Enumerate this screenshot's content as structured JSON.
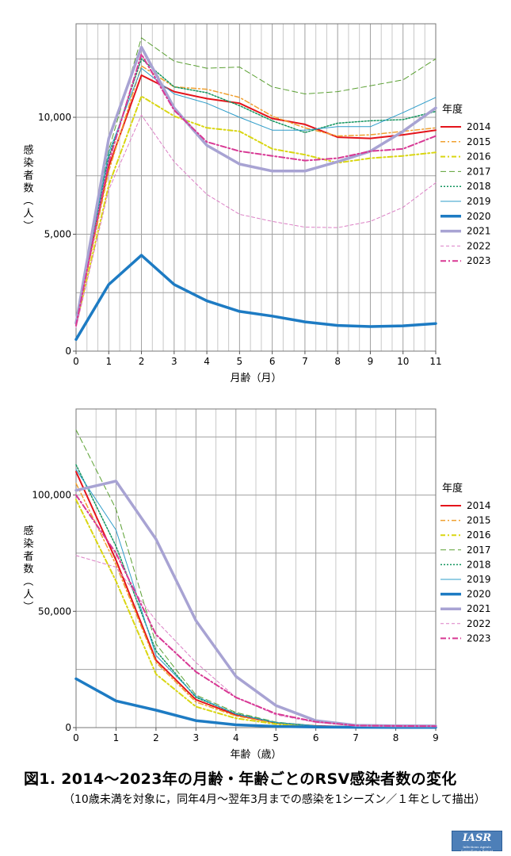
{
  "chart_data": [
    {
      "type": "line",
      "title": "",
      "xlabel": "月齢（月）",
      "ylabel": "感染者数（人）",
      "x": [
        0,
        1,
        2,
        3,
        4,
        5,
        6,
        7,
        8,
        9,
        10,
        11
      ],
      "xticks": [
        "0",
        "1",
        "2",
        "3",
        "4",
        "5",
        "6",
        "7",
        "8",
        "9",
        "10",
        "11"
      ],
      "yticks": [
        {
          "value": 0,
          "label": "0"
        },
        {
          "value": 5000,
          "label": "5,000"
        },
        {
          "value": 10000,
          "label": "10,000"
        }
      ],
      "ylim": [
        0,
        14000
      ],
      "legend_title": "年度",
      "series": [
        {
          "name": "2014",
          "values": [
            1300,
            7900,
            11800,
            11100,
            10800,
            10600,
            9950,
            9700,
            9150,
            9100,
            9250,
            9450
          ]
        },
        {
          "name": "2015",
          "values": [
            1200,
            7700,
            12200,
            11300,
            11200,
            10850,
            10050,
            9550,
            9200,
            9250,
            9400,
            9550
          ]
        },
        {
          "name": "2016",
          "values": [
            1100,
            7100,
            10900,
            10050,
            9550,
            9400,
            8650,
            8400,
            8050,
            8250,
            8350,
            8500
          ]
        },
        {
          "name": "2017",
          "values": [
            1400,
            8600,
            13400,
            12400,
            12100,
            12150,
            11300,
            11000,
            11100,
            11350,
            11600,
            12500
          ]
        },
        {
          "name": "2018",
          "values": [
            1300,
            8300,
            12500,
            11300,
            11050,
            10500,
            9850,
            9350,
            9750,
            9850,
            9900,
            10250
          ]
        },
        {
          "name": "2019",
          "values": [
            1300,
            8500,
            12100,
            11000,
            10600,
            10000,
            9450,
            9450,
            9600,
            9600,
            10200,
            10850
          ]
        },
        {
          "name": "2020",
          "values": [
            500,
            2850,
            4100,
            2850,
            2150,
            1700,
            1500,
            1250,
            1100,
            1050,
            1080,
            1180
          ]
        },
        {
          "name": "2021",
          "values": [
            1200,
            9100,
            13000,
            10400,
            8800,
            8000,
            7700,
            7700,
            8100,
            8550,
            9400,
            10400
          ]
        },
        {
          "name": "2022",
          "values": [
            1000,
            6900,
            10100,
            8100,
            6700,
            5850,
            5550,
            5300,
            5280,
            5550,
            6150,
            7200
          ]
        },
        {
          "name": "2023",
          "values": [
            1100,
            8100,
            12700,
            10300,
            8950,
            8550,
            8350,
            8150,
            8250,
            8550,
            8650,
            9200
          ]
        }
      ]
    },
    {
      "type": "line",
      "title": "",
      "xlabel": "年齢（歳）",
      "ylabel": "感染者数（人）",
      "x": [
        0,
        1,
        2,
        3,
        4,
        5,
        6,
        7,
        8,
        9
      ],
      "xticks": [
        "0",
        "1",
        "2",
        "3",
        "4",
        "5",
        "6",
        "7",
        "8",
        "9"
      ],
      "yticks": [
        {
          "value": 0,
          "label": "0"
        },
        {
          "value": 50000,
          "label": "50,000"
        },
        {
          "value": 100000,
          "label": "100,000"
        }
      ],
      "ylim": [
        0,
        137000
      ],
      "legend_title": "年度",
      "series": [
        {
          "name": "2014",
          "values": [
            110000,
            72000,
            29000,
            12000,
            5500,
            2000,
            700,
            300,
            200,
            150
          ]
        },
        {
          "name": "2015",
          "values": [
            105000,
            70000,
            28000,
            11000,
            5000,
            1800,
            600,
            300,
            200,
            150
          ]
        },
        {
          "name": "2016",
          "values": [
            98000,
            63000,
            23000,
            9000,
            4000,
            1500,
            500,
            250,
            150,
            100
          ]
        },
        {
          "name": "2017",
          "values": [
            128000,
            94000,
            36000,
            14000,
            6500,
            2400,
            800,
            350,
            250,
            200
          ]
        },
        {
          "name": "2018",
          "values": [
            113000,
            78000,
            33000,
            13000,
            6000,
            2100,
            700,
            300,
            200,
            150
          ]
        },
        {
          "name": "2019",
          "values": [
            111000,
            85000,
            31000,
            13500,
            5800,
            2200,
            700,
            300,
            200,
            150
          ]
        },
        {
          "name": "2020",
          "values": [
            21000,
            11500,
            7500,
            3000,
            1200,
            500,
            250,
            150,
            100,
            80
          ]
        },
        {
          "name": "2021",
          "values": [
            102000,
            106000,
            81000,
            46000,
            22000,
            9500,
            3000,
            1000,
            800,
            700
          ]
        },
        {
          "name": "2022",
          "values": [
            74000,
            69000,
            46000,
            28000,
            13000,
            5500,
            2200,
            900,
            700,
            600
          ]
        },
        {
          "name": "2023",
          "values": [
            100000,
            75000,
            40000,
            24000,
            13000,
            6000,
            2500,
            900,
            700,
            600
          ]
        }
      ]
    }
  ],
  "styles": {
    "2014": {
      "color": "#e4141b",
      "dash": "",
      "width": 2
    },
    "2015": {
      "color": "#f0a030",
      "dash": "6 3 2 3",
      "width": 1.5
    },
    "2016": {
      "color": "#d9d612",
      "dash": "6 3 2 3",
      "width": 2
    },
    "2017": {
      "color": "#5aa032",
      "dash": "7 4",
      "width": 1
    },
    "2018": {
      "color": "#13955f",
      "dash": "2 2",
      "width": 1.5
    },
    "2019": {
      "color": "#2c9cc9",
      "dash": "",
      "width": 1
    },
    "2020": {
      "color": "#1d7bc3",
      "dash": "",
      "width": 3.5
    },
    "2021": {
      "color": "#a8a3d3",
      "dash": "",
      "width": 3.5
    },
    "2022": {
      "color": "#dc7fc5",
      "dash": "4 3",
      "width": 1
    },
    "2023": {
      "color": "#d83894",
      "dash": "7 3 2 3",
      "width": 2
    }
  },
  "caption": {
    "title": "図1. 2014～2023年の月齢・年齢ごとのRSV感染者数の変化",
    "note": "（10歳未満を対象に，同年4月～翌年3月までの感染を1シーズン／１年として描出）"
  },
  "logo": {
    "text": "IASR",
    "subtext": "Infectious Agents Surveillance Report"
  }
}
